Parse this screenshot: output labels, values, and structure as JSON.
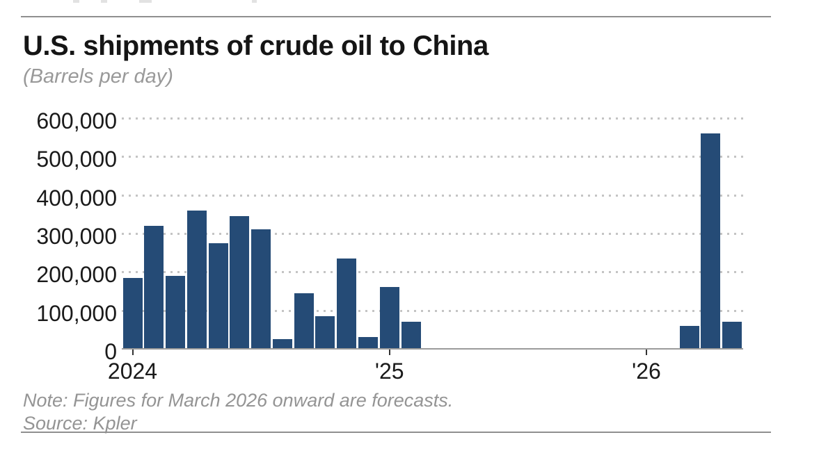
{
  "header": {
    "title": "U.S. shipments of crude oil to China",
    "subtitle": "(Barrels per day)"
  },
  "chart_data": {
    "type": "bar",
    "title": "U.S. shipments of crude oil to China",
    "subtitle": "(Barrels per day)",
    "ylabel": "Barrels per day",
    "xlabel": "",
    "ylim": [
      0,
      600000
    ],
    "y_tick_interval": 100000,
    "y_tick_labels": [
      "0",
      "100,000",
      "200,000",
      "300,000",
      "400,000",
      "500,000",
      "600,000"
    ],
    "grid": "horizontal-dotted",
    "legend": "none",
    "bar_color": "#254b76",
    "forecast_from": "Mar 2026",
    "categories": [
      "Jan 2024",
      "Feb 2024",
      "Mar 2024",
      "Apr 2024",
      "May 2024",
      "Jun 2024",
      "Jul 2024",
      "Aug 2024",
      "Sep 2024",
      "Oct 2024",
      "Nov 2024",
      "Dec 2024",
      "Jan 2025",
      "Feb 2025",
      "Mar 2025",
      "Apr 2025",
      "May 2025",
      "Jun 2025",
      "Jul 2025",
      "Aug 2025",
      "Sep 2025",
      "Oct 2025",
      "Nov 2025",
      "Dec 2025",
      "Jan 2026",
      "Feb 2026",
      "Mar 2026",
      "Apr 2026",
      "May 2026"
    ],
    "values": [
      185000,
      320000,
      190000,
      360000,
      275000,
      345000,
      310000,
      25000,
      145000,
      85000,
      235000,
      30000,
      160000,
      70000,
      0,
      0,
      0,
      0,
      0,
      0,
      0,
      0,
      0,
      0,
      0,
      0,
      60000,
      560000,
      70000
    ],
    "x_ticks": [
      {
        "month_index": 0,
        "label": "2024"
      },
      {
        "month_index": 12,
        "label": "'25"
      },
      {
        "month_index": 24,
        "label": "'26"
      }
    ]
  },
  "footer": {
    "note": "Note: Figures for March 2026 onward are forecasts.",
    "source": "Source: Kpler"
  }
}
